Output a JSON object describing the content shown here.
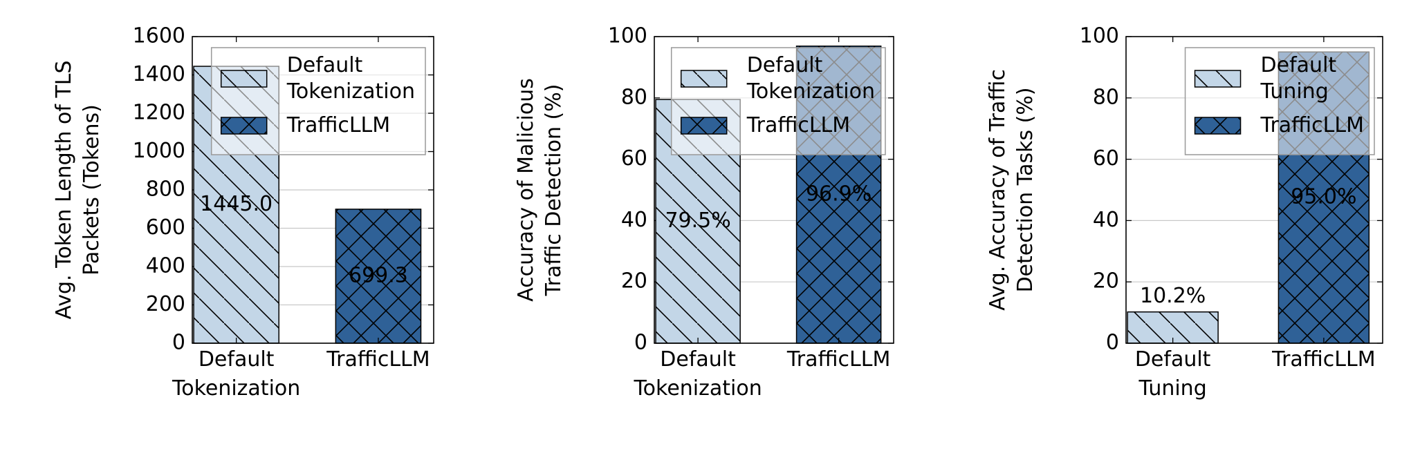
{
  "chart_data": [
    {
      "type": "bar",
      "ylabel": "Avg. Token Length of TLS\nPackets (Tokens)",
      "categories": [
        "Default\nTokenization",
        "TrafficLLM"
      ],
      "series": [
        {
          "name": "Default\nTokenization",
          "color": "#c3d6e7",
          "hatch": "diagonal",
          "values": [
            1445.0,
            null
          ],
          "value_labels": [
            "1445.0",
            null
          ]
        },
        {
          "name": "TrafficLLM",
          "color": "#2f6197",
          "hatch": "cross",
          "values": [
            null,
            699.3
          ]
        }
      ],
      "ylim": [
        0,
        1600
      ],
      "yticks": [
        0,
        200,
        400,
        600,
        800,
        1000,
        1200,
        1400,
        1600
      ],
      "grid": true,
      "legend": "upper right"
    },
    {
      "type": "bar",
      "ylabel": "Accuracy of Malicious\nTraffic Detection (%)",
      "categories": [
        "Default\nTokenization",
        "TrafficLLM"
      ],
      "series": [
        {
          "name": "Default\nTokenization",
          "color": "#c3d6e7",
          "hatch": "diagonal",
          "values": [
            79.5,
            null
          ],
          "value_labels": [
            "79.5%",
            null
          ]
        },
        {
          "name": "TrafficLLM",
          "color": "#2f6197",
          "hatch": "cross",
          "values": [
            null,
            96.9
          ],
          "value_labels": [
            null,
            "96.9%"
          ]
        }
      ],
      "ylim": [
        0,
        100
      ],
      "yticks": [
        0,
        20,
        40,
        60,
        80,
        100
      ],
      "grid": true,
      "legend": "upper right"
    },
    {
      "type": "bar",
      "ylabel": "Avg. Accuracy of Traffic\nDetection Tasks (%)",
      "categories": [
        "Default\nTuning",
        "TrafficLLM"
      ],
      "series": [
        {
          "name": "Default\nTuning",
          "color": "#c3d6e7",
          "hatch": "diagonal",
          "values": [
            10.2,
            null
          ],
          "value_labels": [
            "10.2%",
            null
          ]
        },
        {
          "name": "TrafficLLM",
          "color": "#2f6197",
          "hatch": "cross",
          "values": [
            null,
            95.0
          ],
          "value_labels": [
            null,
            "95.0%"
          ]
        }
      ],
      "ylim": [
        0,
        100
      ],
      "yticks": [
        0,
        20,
        40,
        60,
        80,
        100
      ],
      "grid": true,
      "legend": "upper right"
    }
  ]
}
